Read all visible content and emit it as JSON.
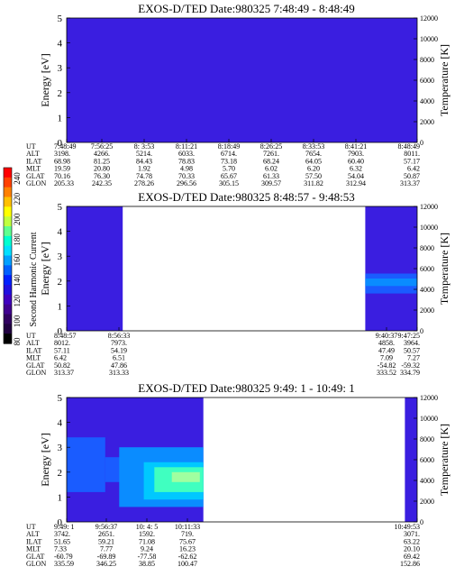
{
  "colorbar": {
    "label": "Second Harmonic Current",
    "ticks": [
      "240",
      "220",
      "200",
      "180",
      "160",
      "140",
      "120",
      "100",
      "80"
    ],
    "colors": [
      "#ff0000",
      "#ff4000",
      "#ff8000",
      "#ffc000",
      "#ffff00",
      "#c0ff40",
      "#60ff90",
      "#00ffd0",
      "#00e0ff",
      "#00a0ff",
      "#0060ff",
      "#0020ff",
      "#2010e0",
      "#4000c0",
      "#400090",
      "#300060",
      "#200040",
      "#000000"
    ]
  },
  "chart_data": [
    {
      "type": "heatmap",
      "title": "EXOS-D/TED   Date:980325  7:48:49 - 8:48:49",
      "ylabel": "Energy [eV]",
      "y2label": "Temperature [K]",
      "ylim": [
        0,
        5
      ],
      "yticks": [
        "0",
        "1",
        "2",
        "3",
        "4",
        "5"
      ],
      "y2lim": [
        0,
        12000
      ],
      "y2ticks": [
        "0",
        "2000",
        "4000",
        "6000",
        "8000",
        "10000",
        "12000"
      ],
      "background_color": "#3a1ee0",
      "regions": [
        {
          "t_start": 0.0,
          "t_end": 1.0,
          "e_low": 0,
          "e_high": 5,
          "color": "#3a1ee0"
        }
      ],
      "orbit_table": {
        "labels": [
          "UT",
          "ALT",
          "ILAT",
          "MLT",
          "GLAT",
          "GLON"
        ],
        "columns": [
          {
            "UT": "7:48:49",
            "ALT": "3198.",
            "ILAT": "68.98",
            "MLT": "19.59",
            "GLAT": "70.16",
            "GLON": "205.33"
          },
          {
            "UT": "7:56:25",
            "ALT": "4266.",
            "ILAT": "81.25",
            "MLT": "20.80",
            "GLAT": "76.30",
            "GLON": "242.35"
          },
          {
            "UT": "8: 3:53",
            "ALT": "5214.",
            "ILAT": "84.43",
            "MLT": "1.92",
            "GLAT": "74.78",
            "GLON": "278.26"
          },
          {
            "UT": "8:11:21",
            "ALT": "6033.",
            "ILAT": "78.83",
            "MLT": "4.98",
            "GLAT": "70.33",
            "GLON": "296.56"
          },
          {
            "UT": "8:18:49",
            "ALT": "6714.",
            "ILAT": "73.18",
            "MLT": "5.70",
            "GLAT": "65.67",
            "GLON": "305.15"
          },
          {
            "UT": "8:26:25",
            "ALT": "7261.",
            "ILAT": "68.24",
            "MLT": "6.02",
            "GLAT": "61.33",
            "GLON": "309.57"
          },
          {
            "UT": "8:33:53",
            "ALT": "7654.",
            "ILAT": "64.05",
            "MLT": "6.20",
            "GLAT": "57.50",
            "GLON": "311.82"
          },
          {
            "UT": "8:41:21",
            "ALT": "7903.",
            "ILAT": "60.40",
            "MLT": "6.32",
            "GLAT": "54.04",
            "GLON": "312.94"
          },
          {
            "UT": "8:48:49",
            "ALT": "8011.",
            "ILAT": "57.17",
            "MLT": "6.42",
            "GLAT": "50.87",
            "GLON": "313.37"
          }
        ]
      }
    },
    {
      "type": "heatmap",
      "title": "EXOS-D/TED   Date:980325  8:48:57 - 9:48:53",
      "ylabel": "Energy [eV]",
      "y2label": "Temperature [K]",
      "ylim": [
        0,
        5
      ],
      "yticks": [
        "0",
        "1",
        "2",
        "3",
        "4",
        "5"
      ],
      "y2lim": [
        0,
        12000
      ],
      "y2ticks": [
        "0",
        "2000",
        "4000",
        "6000",
        "8000",
        "10000",
        "12000"
      ],
      "background_color": "#ffffff",
      "regions": [
        {
          "t_start": 0.0,
          "t_end": 0.16,
          "e_low": 0,
          "e_high": 5,
          "color": "#3a1ee0"
        },
        {
          "t_start": 0.852,
          "t_end": 1.0,
          "e_low": 0,
          "e_high": 5,
          "color": "#3a1ee0"
        },
        {
          "t_start": 0.852,
          "t_end": 1.0,
          "e_low": 1.5,
          "e_high": 2.3,
          "color": "#1a5cff"
        },
        {
          "t_start": 0.852,
          "t_end": 1.0,
          "e_low": 1.8,
          "e_high": 2.1,
          "color": "#0a8cff"
        }
      ],
      "orbit_table": {
        "labels": [
          "UT",
          "ALT",
          "ILAT",
          "MLT",
          "GLAT",
          "GLON"
        ],
        "columns": [
          {
            "UT": "8:48:57",
            "ALT": "8012.",
            "ILAT": "57.11",
            "MLT": "6.42",
            "GLAT": "50.82",
            "GLON": "313.37"
          },
          {
            "UT": "8:56:33",
            "ALT": "7973.",
            "ILAT": "54.19",
            "MLT": "6.51",
            "GLAT": "47.86",
            "GLON": "313.33"
          },
          {
            "UT": "9:40:37",
            "ALT": "4858.",
            "ILAT": "47.49",
            "MLT": "7.09",
            "GLAT": "-54.82",
            "GLON": "333.52"
          },
          {
            "UT": "9:47:25",
            "ALT": "3964.",
            "ILAT": "50.57",
            "MLT": "7.27",
            "GLAT": "-59.32",
            "GLON": "334.79"
          }
        ]
      }
    },
    {
      "type": "heatmap",
      "title": "EXOS-D/TED   Date:980325  9:49: 1 - 10:49: 1",
      "ylabel": "Energy [eV]",
      "y2label": "Temperature [K]",
      "ylim": [
        0,
        5
      ],
      "yticks": [
        "0",
        "1",
        "2",
        "3",
        "4",
        "5"
      ],
      "y2lim": [
        0,
        12000
      ],
      "y2ticks": [
        "0",
        "2000",
        "4000",
        "6000",
        "8000",
        "10000",
        "12000"
      ],
      "background_color": "#ffffff",
      "regions": [
        {
          "t_start": 0.0,
          "t_end": 0.39,
          "e_low": 0,
          "e_high": 5,
          "color": "#3a1ee0"
        },
        {
          "t_start": 0.0,
          "t_end": 0.11,
          "e_low": 1.2,
          "e_high": 3.4,
          "color": "#1a5cff"
        },
        {
          "t_start": 0.11,
          "t_end": 0.2,
          "e_low": 1.6,
          "e_high": 2.6,
          "color": "#1a5cff"
        },
        {
          "t_start": 0.15,
          "t_end": 0.39,
          "e_low": 0.6,
          "e_high": 3.0,
          "color": "#0a8cff"
        },
        {
          "t_start": 0.22,
          "t_end": 0.39,
          "e_low": 0.9,
          "e_high": 2.4,
          "color": "#00c8ff"
        },
        {
          "t_start": 0.25,
          "t_end": 0.39,
          "e_low": 1.2,
          "e_high": 2.2,
          "color": "#40ffc0"
        },
        {
          "t_start": 0.3,
          "t_end": 0.38,
          "e_low": 1.6,
          "e_high": 2.0,
          "color": "#a0ffa0"
        },
        {
          "t_start": 0.965,
          "t_end": 1.0,
          "e_low": 0,
          "e_high": 5,
          "color": "#3a1ee0"
        }
      ],
      "orbit_table": {
        "labels": [
          "UT",
          "ALT",
          "ILAT",
          "MLT",
          "GLAT",
          "GLON"
        ],
        "columns": [
          {
            "UT": "9:49: 1",
            "ALT": "3742.",
            "ILAT": "51.65",
            "MLT": "7.33",
            "GLAT": "-60.79",
            "GLON": "335.59"
          },
          {
            "UT": "9:56:37",
            "ALT": "2651.",
            "ILAT": "59.21",
            "MLT": "7.77",
            "GLAT": "-69.89",
            "GLON": "346.25"
          },
          {
            "UT": "10: 4: 5",
            "ALT": "1592.",
            "ILAT": "71.08",
            "MLT": "9.24",
            "GLAT": "-77.58",
            "GLON": "38.85"
          },
          {
            "UT": "10:11:33",
            "ALT": "719.",
            "ILAT": "75.67",
            "MLT": "16.23",
            "GLAT": "-62.62",
            "GLON": "100.47"
          },
          {
            "UT": "10:49:53",
            "ALT": "3071.",
            "ILAT": "63.22",
            "MLT": "20.10",
            "GLAT": "69.42",
            "GLON": "152.86"
          }
        ]
      }
    }
  ]
}
